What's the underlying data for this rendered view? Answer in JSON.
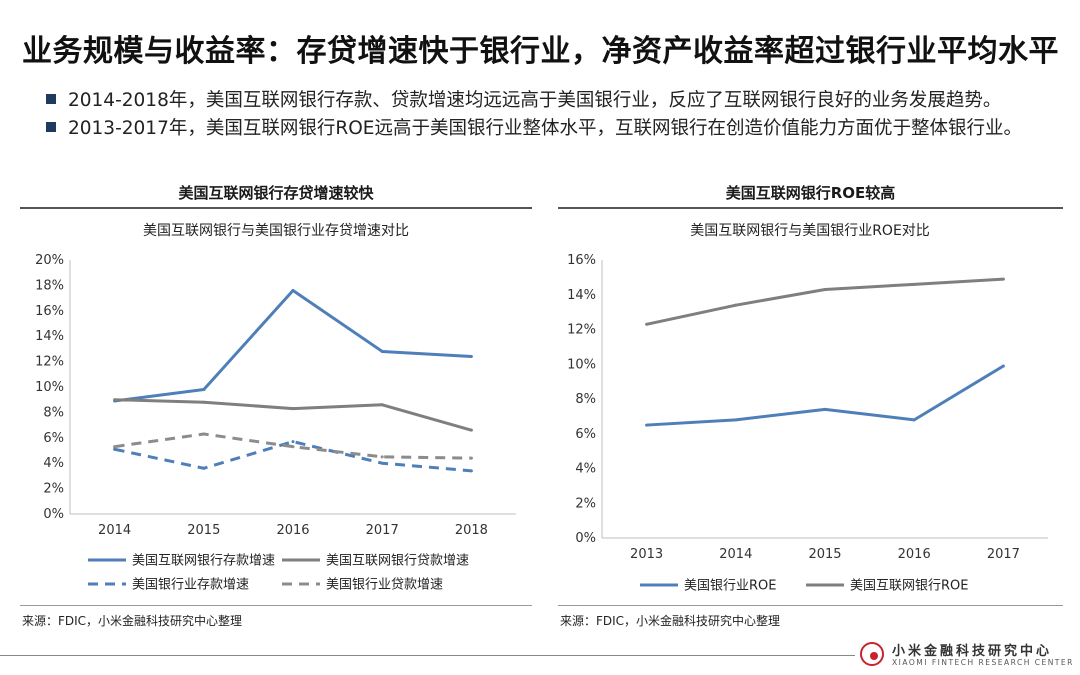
{
  "header": {
    "title": "业务规模与收益率：存贷增速快于银行业，净资产收益率超过银行业平均水平",
    "bullets": [
      "2014-2018年，美国互联网银行存款、贷款增速均远远高于美国银行业，反应了互联网银行良好的业务发展趋势。",
      "2013-2017年，美国互联网银行ROE远高于美国银行业整体水平，互联网银行在创造价值能力方面优于整体银行业。"
    ]
  },
  "left_panel": {
    "heading": "美国互联网银行存贷增速较快",
    "source": "来源：FDIC，小米金融科技研究中心整理"
  },
  "right_panel": {
    "heading": "美国互联网银行ROE较高",
    "source": "来源：FDIC，小米金融科技研究中心整理"
  },
  "logo": {
    "name_cn": "小米金融科技研究中心",
    "name_en": "XIAOMI FINTECH RESEARCH CENTER"
  },
  "chart_data": [
    {
      "type": "line",
      "title": "美国互联网银行与美国银行业存贷增速对比",
      "categories": [
        "2014",
        "2015",
        "2016",
        "2017",
        "2018"
      ],
      "ylim": [
        0,
        20
      ],
      "yticks": [
        "0%",
        "2%",
        "4%",
        "6%",
        "8%",
        "10%",
        "12%",
        "14%",
        "16%",
        "18%",
        "20%"
      ],
      "grid": false,
      "legend_position": "bottom",
      "series": [
        {
          "name": "美国互联网银行存款增速",
          "values": [
            8.9,
            9.8,
            17.6,
            12.8,
            12.4
          ],
          "color": "#4f7fb8",
          "dashed": false
        },
        {
          "name": "美国互联网银行贷款增速",
          "values": [
            9.0,
            8.8,
            8.3,
            8.6,
            6.6
          ],
          "color": "#7f7f7f",
          "dashed": false
        },
        {
          "name": "美国银行业存款增速",
          "values": [
            5.1,
            3.6,
            5.7,
            4.0,
            3.4
          ],
          "color": "#4f7fb8",
          "dashed": true
        },
        {
          "name": "美国银行业贷款增速",
          "values": [
            5.3,
            6.3,
            5.3,
            4.5,
            4.4
          ],
          "color": "#8c8c8c",
          "dashed": true
        }
      ]
    },
    {
      "type": "line",
      "title": "美国互联网银行与美国银行业ROE对比",
      "categories": [
        "2013",
        "2014",
        "2015",
        "2016",
        "2017"
      ],
      "ylim": [
        0,
        16
      ],
      "yticks": [
        "0%",
        "2%",
        "4%",
        "6%",
        "8%",
        "10%",
        "12%",
        "14%",
        "16%"
      ],
      "grid": false,
      "legend_position": "bottom",
      "series": [
        {
          "name": "美国银行业ROE",
          "values": [
            6.5,
            6.8,
            7.4,
            6.8,
            9.9
          ],
          "color": "#4f7fb8",
          "dashed": false
        },
        {
          "name": "美国互联网银行ROE",
          "values": [
            12.3,
            13.4,
            14.3,
            14.6,
            14.9
          ],
          "color": "#7f7f7f",
          "dashed": false
        }
      ]
    }
  ]
}
